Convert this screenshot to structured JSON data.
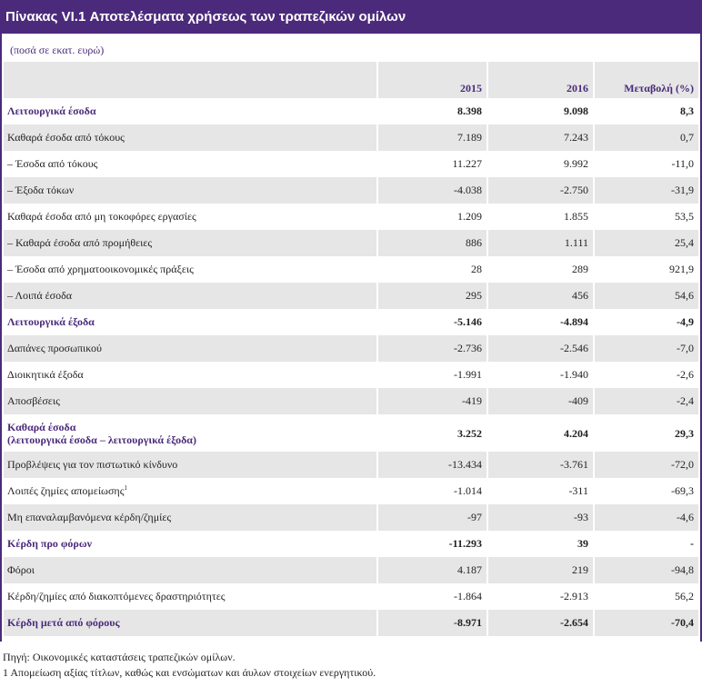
{
  "title": "Πίνακας VI.1 Αποτελέσματα χρήσεως των τραπεζικών ομίλων",
  "subtitle": "(ποσά σε εκατ. ευρώ)",
  "header": {
    "col1": "2015",
    "col2": "2016",
    "col3": "Μεταβολή (%)"
  },
  "rows": [
    {
      "label": "Λειτουργικά έσοδα",
      "v2015": "8.398",
      "v2016": "9.098",
      "change": "8,3"
    },
    {
      "label": "Καθαρά έσοδα από τόκους",
      "v2015": "7.189",
      "v2016": "7.243",
      "change": "0,7"
    },
    {
      "label": "– Έσοδα από τόκους",
      "v2015": "11.227",
      "v2016": "9.992",
      "change": "-11,0"
    },
    {
      "label": "– Έξοδα τόκων",
      "v2015": "-4.038",
      "v2016": "-2.750",
      "change": "-31,9"
    },
    {
      "label": "Καθαρά έσοδα από μη τοκοφόρες εργασίες",
      "v2015": "1.209",
      "v2016": "1.855",
      "change": "53,5"
    },
    {
      "label": "– Καθαρά έσοδα από προμήθειες",
      "v2015": "886",
      "v2016": "1.111",
      "change": "25,4"
    },
    {
      "label": "– Έσοδα από χρηματοοικονομικές πράξεις",
      "v2015": "28",
      "v2016": "289",
      "change": "921,9"
    },
    {
      "label": "– Λοιπά έσοδα",
      "v2015": "295",
      "v2016": "456",
      "change": "54,6"
    },
    {
      "label": "Λειτουργικά έξοδα",
      "v2015": "-5.146",
      "v2016": "-4.894",
      "change": "-4,9"
    },
    {
      "label": "Δαπάνες προσωπικού",
      "v2015": "-2.736",
      "v2016": "-2.546",
      "change": "-7,0"
    },
    {
      "label": "Διοικητικά έξοδα",
      "v2015": "-1.991",
      "v2016": "-1.940",
      "change": "-2,6"
    },
    {
      "label": "Αποσβέσεις",
      "v2015": "-419",
      "v2016": "-409",
      "change": "-2,4"
    },
    {
      "label": "Καθαρά έσοδα",
      "label2": "(λειτουργικά έσοδα – λειτουργικά έξοδα)",
      "v2015": "3.252",
      "v2016": "4.204",
      "change": "29,3"
    },
    {
      "label": "Προβλέψεις για τον πιστωτικό κίνδυνο",
      "v2015": "-13.434",
      "v2016": "-3.761",
      "change": "-72,0"
    },
    {
      "label": "Λοιπές ζημίες απομείωσης",
      "sup": "1",
      "v2015": "-1.014",
      "v2016": "-311",
      "change": "-69,3"
    },
    {
      "label": "Μη επαναλαμβανόμενα κέρδη/ζημίες",
      "v2015": "-97",
      "v2016": "-93",
      "change": "-4,6"
    },
    {
      "label": "Κέρδη προ φόρων",
      "v2015": "-11.293",
      "v2016": "39",
      "change": "-"
    },
    {
      "label": "Φόροι",
      "v2015": "4.187",
      "v2016": "219",
      "change": "-94,8"
    },
    {
      "label": "Κέρδη/ζημίες από διακοπτόμενες δραστηριότητες",
      "v2015": "-1.864",
      "v2016": "-2.913",
      "change": "56,2"
    },
    {
      "label": "Κέρδη μετά από φόρους",
      "v2015": "-8.971",
      "v2016": "-2.654",
      "change": "-70,4"
    }
  ],
  "footer": {
    "source": "Πηγή: Οικονομικές καταστάσεις τραπεζικών ομίλων.",
    "note": "1 Απομείωση αξίας τίτλων, καθώς και ενσώματων και άυλων στοιχείων ενεργητικού."
  }
}
